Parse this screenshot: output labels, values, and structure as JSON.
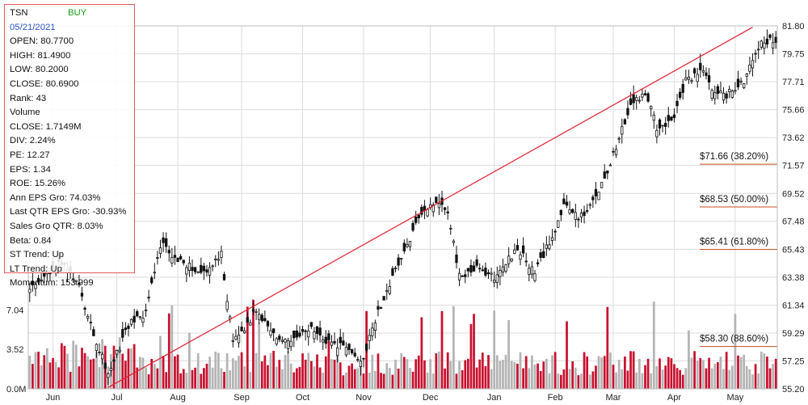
{
  "colors": {
    "up_candle": "#ffffff",
    "down_candle": "#111111",
    "volume_up": "#c8102e",
    "volume_down": "#b4b4b4",
    "trendline": "#e0202e",
    "fib_line": "#cc4b1a",
    "grid": "#dcdcdc",
    "panel_border": "#e05a5a",
    "buy": "#1a9a1a",
    "date": "#2a55c8"
  },
  "info": {
    "ticker": "TSN",
    "signal": "BUY",
    "date": "05/21/2021",
    "open": "OPEN: 80.7700",
    "high": "HIGH: 81.4900",
    "low": "LOW: 80.2000",
    "close": "CLOSE: 80.6900",
    "rank": "Rank: 43",
    "volume_label": "Volume",
    "volume_close": "CLOSE: 1.7149M",
    "div": "DIV: 2.24%",
    "pe": "PE: 12.27",
    "eps": "EPS: 1.34",
    "roe": "ROE: 15.26%",
    "ann_eps_gro": "Ann EPS Gro: 74.03%",
    "last_qtr_eps_gro": "Last QTR EPS Gro: -30.93%",
    "sales_gro_qtr": "Sales Gro QTR: 8.03%",
    "beta": "Beta: 0.84",
    "st_trend": "ST Trend: Up",
    "lt_trend": "LT Trend: Up",
    "momentum": "Momentum: 153.999"
  },
  "chart_data": {
    "type": "candlestick",
    "price_ticks": [
      "81.80",
      "79.75",
      "77.71",
      "75.66",
      "73.62",
      "71.57",
      "69.52",
      "67.48",
      "65.43",
      "63.38",
      "61.34",
      "59.29",
      "57.25",
      "55.20"
    ],
    "price_range": [
      55.2,
      81.8
    ],
    "volume_ticks": [
      "7.04",
      "3.52",
      "0.0M"
    ],
    "volume_range": [
      0,
      8.9
    ],
    "x_labels": [
      "Jun",
      "Jul",
      "Aug",
      "Sep",
      "Oct",
      "Nov",
      "Dec",
      "Jan",
      "Feb",
      "Mar",
      "Apr",
      "May"
    ],
    "fib_levels": [
      {
        "label": "$71.66 (38.20%)",
        "price": 71.66
      },
      {
        "label": "$68.53 (50.00%)",
        "price": 68.53
      },
      {
        "label": "$65.41 (61.80%)",
        "price": 65.41
      },
      {
        "label": "$58.30 (88.60%)",
        "price": 58.3
      }
    ],
    "trendline": {
      "start": {
        "bar": 27,
        "price": 55.3
      },
      "end": {
        "bar": 249,
        "price": 81.7
      }
    },
    "keypoints": [
      [
        0,
        62.4
      ],
      [
        10,
        64.5
      ],
      [
        16,
        63.2
      ],
      [
        22,
        59.3
      ],
      [
        27,
        56.2
      ],
      [
        34,
        59.9
      ],
      [
        40,
        60.8
      ],
      [
        45,
        65.8
      ],
      [
        52,
        64.5
      ],
      [
        60,
        63.6
      ],
      [
        66,
        65.0
      ],
      [
        70,
        58.6
      ],
      [
        78,
        60.9
      ],
      [
        84,
        59.1
      ],
      [
        90,
        58.5
      ],
      [
        97,
        59.6
      ],
      [
        103,
        58.5
      ],
      [
        110,
        58.2
      ],
      [
        114,
        57.0
      ],
      [
        120,
        60.9
      ],
      [
        128,
        64.8
      ],
      [
        136,
        68.5
      ],
      [
        140,
        69.0
      ],
      [
        144,
        68.3
      ],
      [
        148,
        63.4
      ],
      [
        154,
        64.0
      ],
      [
        160,
        63.4
      ],
      [
        168,
        65.5
      ],
      [
        174,
        63.6
      ],
      [
        178,
        65.5
      ],
      [
        184,
        68.5
      ],
      [
        190,
        67.8
      ],
      [
        194,
        68.8
      ],
      [
        199,
        71.3
      ],
      [
        204,
        74.2
      ],
      [
        208,
        76.3
      ],
      [
        212,
        76.8
      ],
      [
        216,
        74.4
      ],
      [
        222,
        75.0
      ],
      [
        226,
        77.8
      ],
      [
        232,
        78.5
      ],
      [
        236,
        77.0
      ],
      [
        240,
        76.7
      ],
      [
        246,
        77.8
      ],
      [
        252,
        80.9
      ],
      [
        256,
        80.6
      ]
    ]
  }
}
